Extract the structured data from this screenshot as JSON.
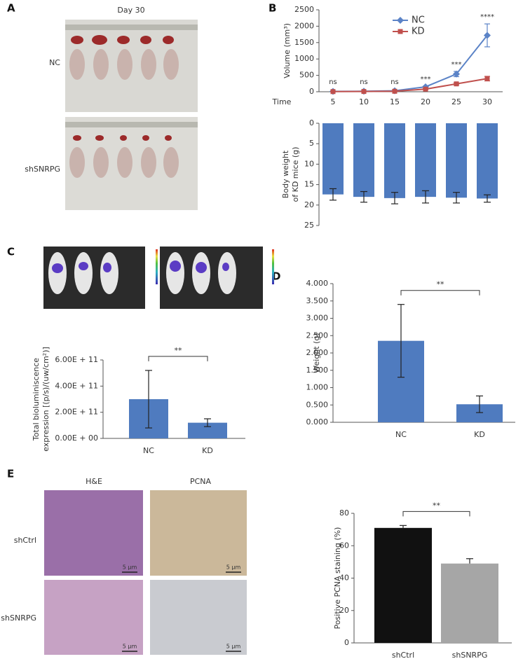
{
  "figure": {
    "panels": [
      "A",
      "B",
      "C",
      "D",
      "E"
    ],
    "a": {
      "title": "Day 30",
      "rows": [
        "NC",
        "shSNRPG"
      ]
    },
    "e": {
      "columns": [
        "H&E",
        "PCNA"
      ],
      "rows": [
        "shCtrl",
        "shSNRPG"
      ],
      "scale": "5 µm"
    }
  },
  "chart_data": [
    {
      "type": "line",
      "ylabel": [
        "Volume (mm³)"
      ],
      "xlabel": "Time",
      "categories": [
        "5",
        "10",
        "15",
        "20",
        "25",
        "30"
      ],
      "series": [
        {
          "name": "NC",
          "color": "#5b83c7",
          "marker": "diamond",
          "values": [
            10,
            15,
            30,
            150,
            540,
            1720
          ],
          "errors": [
            5,
            5,
            10,
            20,
            80,
            350
          ]
        },
        {
          "name": "KD",
          "color": "#c0504d",
          "marker": "square",
          "values": [
            5,
            8,
            15,
            80,
            240,
            400
          ],
          "errors": [
            3,
            3,
            5,
            15,
            30,
            70
          ]
        }
      ],
      "significance": [
        "ns",
        "ns",
        "ns",
        "***",
        "***",
        "****"
      ],
      "ylim": [
        0,
        2500
      ],
      "yticks": [
        0,
        500,
        1000,
        1500,
        2000,
        2500
      ],
      "error_bars": "both"
    },
    {
      "type": "bar",
      "ylabel": [
        "Body weight",
        "of KD mice (g)"
      ],
      "values": [
        17.4,
        18,
        18.3,
        18,
        18.2,
        18.4
      ],
      "errors": [
        1.4,
        1.3,
        1.4,
        1.5,
        1.3,
        0.9
      ],
      "color": "#4f7bbf",
      "ylim": [
        0,
        25
      ],
      "yticks": [
        0,
        5,
        10,
        15,
        20,
        25
      ],
      "inverted": true,
      "error_bars": "both"
    },
    {
      "type": "bar",
      "ylabel": [
        "Total bioluminiscence",
        "expression [(p/s)/(uw/cm²)]"
      ],
      "categories": [
        "NC",
        "KD"
      ],
      "values": [
        300000000000,
        120000000000
      ],
      "errors": [
        220000000000,
        30000000000
      ],
      "color": "#4f7bbf",
      "ylim": [
        0,
        600000000000
      ],
      "yticks": [
        {
          "value": 0,
          "label": "0.00E + 00"
        },
        {
          "value": 200000000000,
          "label": "2.00E + 11"
        },
        {
          "value": 400000000000,
          "label": "4.00E + 11"
        },
        {
          "value": 600000000000,
          "label": "6.00E + 11"
        }
      ],
      "significance": "**",
      "error_bars": "both"
    },
    {
      "type": "bar",
      "ylabel": [
        "Weight (g)"
      ],
      "categories": [
        "NC",
        "KD"
      ],
      "values": [
        2.35,
        0.52
      ],
      "errors": [
        1.05,
        0.24
      ],
      "color": "#4f7bbf",
      "ylim": [
        0,
        4
      ],
      "yticks": [
        {
          "value": 0,
          "label": "0.000"
        },
        {
          "value": 0.5,
          "label": "0.500"
        },
        {
          "value": 1,
          "label": "1.000"
        },
        {
          "value": 1.5,
          "label": "1.500"
        },
        {
          "value": 2,
          "label": "2.000"
        },
        {
          "value": 2.5,
          "label": "2.500"
        },
        {
          "value": 3,
          "label": "3.000"
        },
        {
          "value": 3.5,
          "label": "3.500"
        },
        {
          "value": 4,
          "label": "4.000"
        }
      ],
      "significance": "**",
      "error_bars": "both"
    },
    {
      "type": "bar",
      "ylabel": [
        "Positive PCNA staining (%)"
      ],
      "categories": [
        "shCtrl",
        "shSNRPG"
      ],
      "values": [
        71,
        49
      ],
      "errors": [
        1.5,
        3
      ],
      "colors": [
        "#111111",
        "#a6a6a6"
      ],
      "ylim": [
        0,
        80
      ],
      "yticks": [
        0,
        20,
        40,
        60,
        80
      ],
      "significance": "**",
      "error_bars": "upper"
    }
  ]
}
